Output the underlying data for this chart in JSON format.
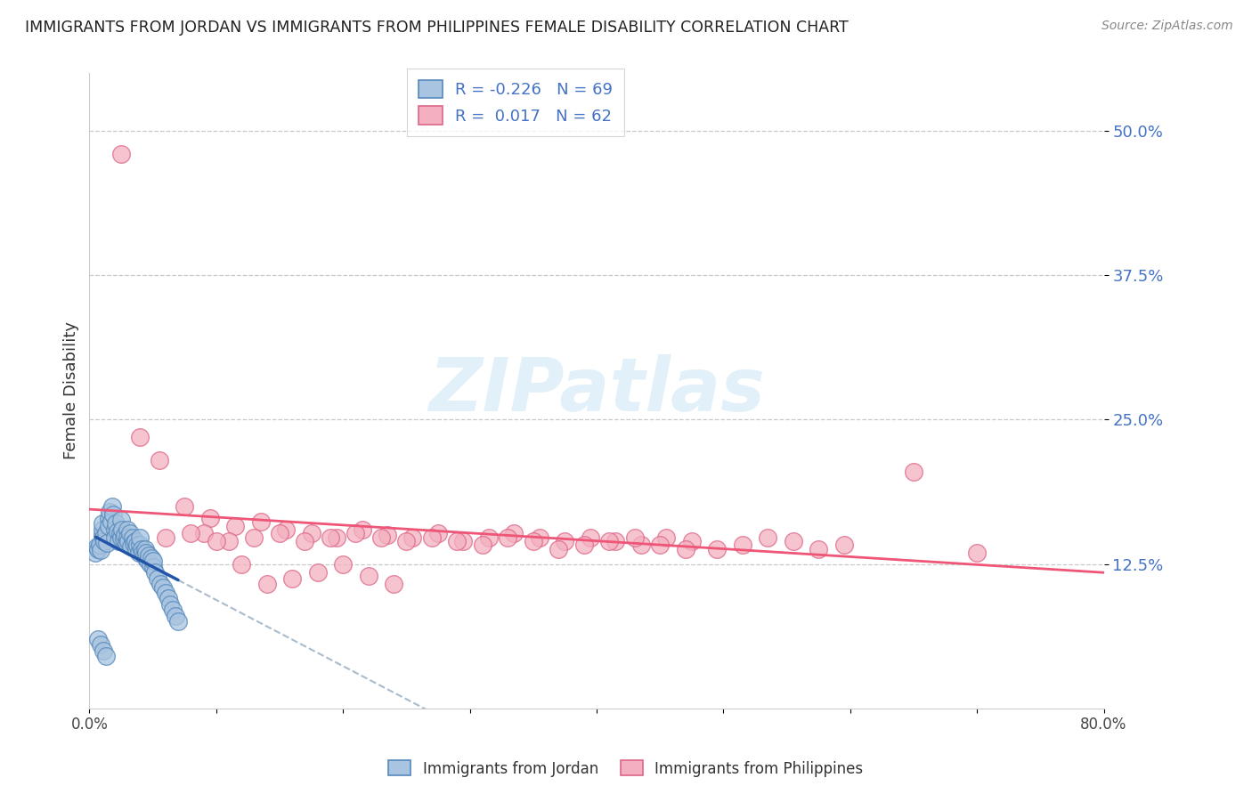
{
  "title": "IMMIGRANTS FROM JORDAN VS IMMIGRANTS FROM PHILIPPINES FEMALE DISABILITY CORRELATION CHART",
  "source": "Source: ZipAtlas.com",
  "ylabel": "Female Disability",
  "xlim": [
    0.0,
    0.8
  ],
  "ylim": [
    0.0,
    0.55
  ],
  "yticks": [
    0.125,
    0.25,
    0.375,
    0.5
  ],
  "yticklabels": [
    "12.5%",
    "25.0%",
    "37.5%",
    "50.0%"
  ],
  "legend_labels": [
    "Immigrants from Jordan",
    "Immigrants from Philippines"
  ],
  "legend_R": [
    "-0.226",
    "0.017"
  ],
  "legend_N": [
    "69",
    "62"
  ],
  "blue_dot_color": "#a8c4e0",
  "blue_edge_color": "#5588bb",
  "pink_dot_color": "#f4b0c0",
  "pink_edge_color": "#dd6688",
  "blue_line_color": "#2255aa",
  "pink_line_color": "#ee5577",
  "dash_line_color": "#aabbcc",
  "watermark_color": "#d0e8f5",
  "ytick_color": "#4472c4",
  "jordan_x": [
    0.005,
    0.006,
    0.007,
    0.008,
    0.009,
    0.01,
    0.01,
    0.01,
    0.011,
    0.012,
    0.013,
    0.014,
    0.015,
    0.015,
    0.016,
    0.017,
    0.018,
    0.019,
    0.02,
    0.02,
    0.021,
    0.022,
    0.023,
    0.024,
    0.025,
    0.025,
    0.026,
    0.027,
    0.028,
    0.029,
    0.03,
    0.03,
    0.031,
    0.032,
    0.033,
    0.034,
    0.035,
    0.036,
    0.037,
    0.038,
    0.039,
    0.04,
    0.04,
    0.041,
    0.042,
    0.043,
    0.044,
    0.045,
    0.045,
    0.046,
    0.047,
    0.048,
    0.049,
    0.05,
    0.05,
    0.052,
    0.054,
    0.056,
    0.058,
    0.06,
    0.062,
    0.064,
    0.066,
    0.068,
    0.07,
    0.007,
    0.009,
    0.011,
    0.013
  ],
  "jordan_y": [
    0.135,
    0.14,
    0.138,
    0.142,
    0.137,
    0.15,
    0.155,
    0.16,
    0.148,
    0.145,
    0.152,
    0.143,
    0.165,
    0.158,
    0.17,
    0.162,
    0.175,
    0.168,
    0.155,
    0.148,
    0.16,
    0.153,
    0.145,
    0.152,
    0.163,
    0.148,
    0.155,
    0.147,
    0.15,
    0.143,
    0.155,
    0.148,
    0.145,
    0.152,
    0.14,
    0.148,
    0.143,
    0.145,
    0.138,
    0.142,
    0.135,
    0.142,
    0.148,
    0.138,
    0.135,
    0.132,
    0.138,
    0.13,
    0.135,
    0.128,
    0.132,
    0.125,
    0.13,
    0.122,
    0.128,
    0.118,
    0.112,
    0.108,
    0.105,
    0.1,
    0.095,
    0.09,
    0.085,
    0.08,
    0.075,
    0.06,
    0.055,
    0.05,
    0.045
  ],
  "philippines_x": [
    0.025,
    0.04,
    0.055,
    0.075,
    0.095,
    0.115,
    0.135,
    0.155,
    0.175,
    0.195,
    0.215,
    0.235,
    0.255,
    0.275,
    0.295,
    0.315,
    0.335,
    0.355,
    0.375,
    0.395,
    0.415,
    0.435,
    0.455,
    0.475,
    0.495,
    0.515,
    0.535,
    0.555,
    0.575,
    0.595,
    0.09,
    0.11,
    0.13,
    0.15,
    0.17,
    0.19,
    0.21,
    0.23,
    0.25,
    0.27,
    0.29,
    0.31,
    0.33,
    0.35,
    0.37,
    0.39,
    0.41,
    0.43,
    0.45,
    0.47,
    0.65,
    0.7,
    0.06,
    0.08,
    0.1,
    0.12,
    0.14,
    0.16,
    0.18,
    0.2,
    0.22,
    0.24
  ],
  "philippines_y": [
    0.48,
    0.235,
    0.215,
    0.175,
    0.165,
    0.158,
    0.162,
    0.155,
    0.152,
    0.148,
    0.155,
    0.15,
    0.148,
    0.152,
    0.145,
    0.148,
    0.152,
    0.148,
    0.145,
    0.148,
    0.145,
    0.142,
    0.148,
    0.145,
    0.138,
    0.142,
    0.148,
    0.145,
    0.138,
    0.142,
    0.152,
    0.145,
    0.148,
    0.152,
    0.145,
    0.148,
    0.152,
    0.148,
    0.145,
    0.148,
    0.145,
    0.142,
    0.148,
    0.145,
    0.138,
    0.142,
    0.145,
    0.148,
    0.142,
    0.138,
    0.205,
    0.135,
    0.148,
    0.152,
    0.145,
    0.125,
    0.108,
    0.112,
    0.118,
    0.125,
    0.115,
    0.108
  ]
}
